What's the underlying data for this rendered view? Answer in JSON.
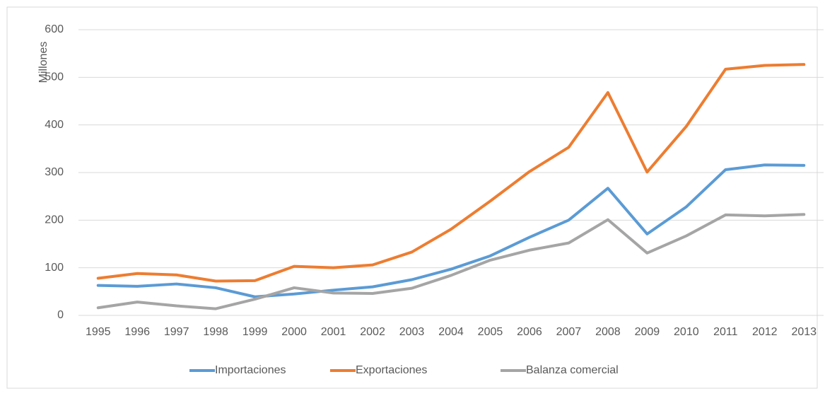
{
  "chart_data": {
    "type": "line",
    "y_label": "Millones",
    "categories": [
      "1995",
      "1996",
      "1997",
      "1998",
      "1999",
      "2000",
      "2001",
      "2002",
      "2003",
      "2004",
      "2005",
      "2006",
      "2007",
      "2008",
      "2009",
      "2010",
      "2011",
      "2012",
      "2013"
    ],
    "series": [
      {
        "name": "Importaciones",
        "color": "#5b9bd5",
        "values": [
          63,
          61,
          66,
          58,
          39,
          45,
          53,
          60,
          75,
          97,
          125,
          164,
          200,
          267,
          171,
          228,
          306,
          316,
          315
        ]
      },
      {
        "name": "Exportaciones",
        "color": "#ed7d31",
        "values": [
          78,
          88,
          85,
          72,
          73,
          103,
          100,
          106,
          133,
          181,
          240,
          302,
          353,
          468,
          301,
          397,
          517,
          525,
          527
        ]
      },
      {
        "name": "Balanza comercial",
        "color": "#a5a5a5",
        "values": [
          16,
          28,
          20,
          14,
          34,
          58,
          47,
          46,
          57,
          84,
          116,
          137,
          152,
          201,
          131,
          167,
          211,
          209,
          212
        ]
      }
    ],
    "ylim": [
      0,
      600
    ],
    "yticks": [
      0,
      100,
      200,
      300,
      400,
      500,
      600
    ],
    "grid": true,
    "legend": "bottom"
  }
}
